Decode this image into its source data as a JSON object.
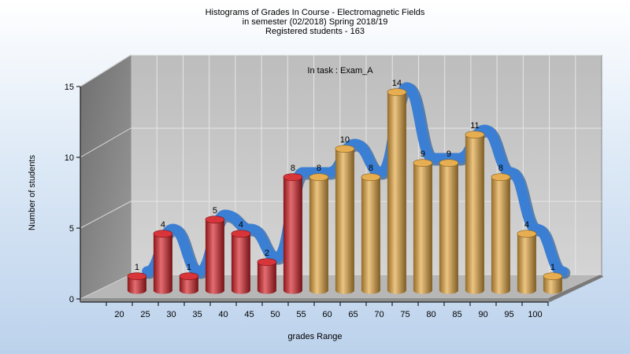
{
  "chart_data": {
    "type": "bar",
    "title_lines": [
      "Histograms of Grades  In Course - Electromagnetic Fields",
      "in semester  (02/2018) Spring 2018/19",
      "Registered students - 163"
    ],
    "annotation": "In task : Exam_A",
    "xlabel": "grades Range",
    "ylabel": "Number of students",
    "ylim": [
      0,
      15
    ],
    "yticks": [
      "0",
      "5",
      "10",
      "15"
    ],
    "x_tick_labels": [
      "20",
      "25",
      "30",
      "35",
      "40",
      "45",
      "50",
      "55",
      "60",
      "65",
      "70",
      "75",
      "80",
      "85",
      "90",
      "95",
      "100"
    ],
    "values": [
      1,
      4,
      1,
      5,
      4,
      2,
      8,
      8,
      10,
      8,
      14,
      9,
      9,
      11,
      8,
      4,
      1
    ],
    "bar_colors": [
      "#d41f24",
      "#d41f24",
      "#d41f24",
      "#d41f24",
      "#d41f24",
      "#d41f24",
      "#d41f24",
      "#e3a53e",
      "#e3a53e",
      "#e3a53e",
      "#e3a53e",
      "#e3a53e",
      "#e3a53e",
      "#e3a53e",
      "#e3a53e",
      "#e3a53e",
      "#e3a53e"
    ],
    "trend_color": "#3a7fd3",
    "grid": true,
    "style": "3d"
  }
}
